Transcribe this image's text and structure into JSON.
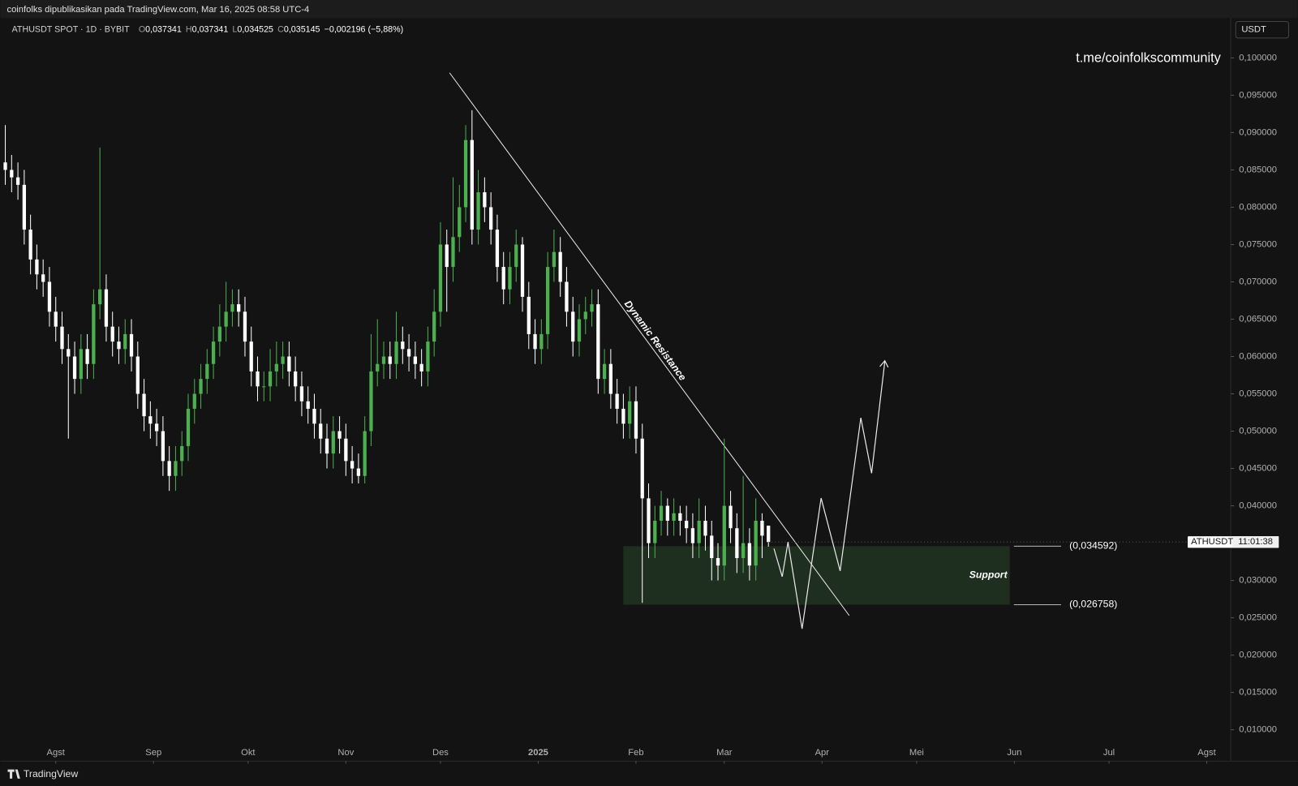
{
  "header": "coinfolks dipublikasikan pada TradingView.com, Mar 16, 2025 08:58 UTC-4",
  "footer": "TradingView",
  "currency": "USDT",
  "watermark": "t.me/coinfolkscommunity",
  "chart_data": {
    "type": "candlestick",
    "legend_title": "ATHUSDT SPOT · 1D · BYBIT",
    "ohlc": [
      {
        "key": "O",
        "label": "0,037341"
      },
      {
        "key": "H",
        "label": "0,037341"
      },
      {
        "key": "L",
        "label": "0,034525"
      },
      {
        "key": "C",
        "label": "0,035145"
      }
    ],
    "change": "−0,002196 (−5,88%)",
    "up_color": "#4caf50",
    "down_color": "#ffffff",
    "open": [
      0.086,
      0.085,
      0.084,
      0.083,
      0.077,
      0.073,
      0.071,
      0.07,
      0.066,
      0.064,
      0.061,
      0.06,
      0.057,
      0.061,
      0.059,
      0.067,
      0.069,
      0.064,
      0.062,
      0.061,
      0.063,
      0.06,
      0.055,
      0.052,
      0.051,
      0.05,
      0.046,
      0.044,
      0.046,
      0.048,
      0.053,
      0.055,
      0.057,
      0.059,
      0.062,
      0.064,
      0.066,
      0.067,
      0.066,
      0.062,
      0.058,
      0.056,
      0.056,
      0.058,
      0.059,
      0.06,
      0.058,
      0.056,
      0.054,
      0.053,
      0.051,
      0.049,
      0.047,
      0.05,
      0.049,
      0.046,
      0.045,
      0.044,
      0.05,
      0.058,
      0.059,
      0.06,
      0.059,
      0.062,
      0.061,
      0.06,
      0.059,
      0.058,
      0.062,
      0.066,
      0.075,
      0.072,
      0.076,
      0.08,
      0.089,
      0.077,
      0.082,
      0.08,
      0.077,
      0.072,
      0.069,
      0.072,
      0.075,
      0.068,
      0.063,
      0.061,
      0.063,
      0.072,
      0.074,
      0.07,
      0.066,
      0.062,
      0.065,
      0.066,
      0.067,
      0.057,
      0.059,
      0.055,
      0.053,
      0.051,
      0.054,
      0.049,
      0.041,
      0.035,
      0.038,
      0.04,
      0.038,
      0.039,
      0.038,
      0.037,
      0.035,
      0.038,
      0.036,
      0.033,
      0.032,
      0.04,
      0.037,
      0.033,
      0.035,
      0.032,
      0.038,
      0.037341
    ],
    "high": [
      0.091,
      0.087,
      0.086,
      0.085,
      0.079,
      0.075,
      0.073,
      0.072,
      0.068,
      0.066,
      0.063,
      0.062,
      0.063,
      0.063,
      0.069,
      0.088,
      0.071,
      0.066,
      0.064,
      0.065,
      0.065,
      0.062,
      0.057,
      0.054,
      0.053,
      0.052,
      0.048,
      0.048,
      0.05,
      0.055,
      0.057,
      0.059,
      0.061,
      0.064,
      0.067,
      0.07,
      0.069,
      0.069,
      0.068,
      0.064,
      0.06,
      0.058,
      0.061,
      0.062,
      0.062,
      0.062,
      0.06,
      0.058,
      0.056,
      0.055,
      0.053,
      0.051,
      0.052,
      0.052,
      0.051,
      0.048,
      0.047,
      0.052,
      0.063,
      0.065,
      0.062,
      0.062,
      0.066,
      0.064,
      0.063,
      0.062,
      0.061,
      0.064,
      0.069,
      0.078,
      0.077,
      0.084,
      0.083,
      0.091,
      0.093,
      0.085,
      0.084,
      0.082,
      0.079,
      0.074,
      0.074,
      0.077,
      0.076,
      0.07,
      0.065,
      0.065,
      0.074,
      0.077,
      0.076,
      0.072,
      0.068,
      0.067,
      0.068,
      0.069,
      0.069,
      0.061,
      0.061,
      0.057,
      0.055,
      0.056,
      0.056,
      0.051,
      0.043,
      0.04,
      0.042,
      0.041,
      0.041,
      0.04,
      0.04,
      0.039,
      0.041,
      0.04,
      0.038,
      0.035,
      0.049,
      0.042,
      0.039,
      0.044,
      0.037,
      0.041,
      0.039,
      0.037341
    ],
    "low": [
      0.083,
      0.082,
      0.081,
      0.075,
      0.071,
      0.069,
      0.068,
      0.064,
      0.062,
      0.059,
      0.049,
      0.055,
      0.055,
      0.057,
      0.057,
      0.065,
      0.062,
      0.06,
      0.059,
      0.059,
      0.058,
      0.053,
      0.05,
      0.049,
      0.048,
      0.044,
      0.042,
      0.042,
      0.044,
      0.046,
      0.051,
      0.053,
      0.055,
      0.057,
      0.06,
      0.062,
      0.064,
      0.064,
      0.06,
      0.056,
      0.054,
      0.054,
      0.054,
      0.056,
      0.057,
      0.056,
      0.054,
      0.052,
      0.051,
      0.049,
      0.047,
      0.045,
      0.045,
      0.047,
      0.044,
      0.043,
      0.043,
      0.043,
      0.048,
      0.056,
      0.057,
      0.057,
      0.057,
      0.059,
      0.058,
      0.057,
      0.056,
      0.056,
      0.06,
      0.064,
      0.066,
      0.07,
      0.074,
      0.078,
      0.075,
      0.075,
      0.078,
      0.075,
      0.07,
      0.067,
      0.067,
      0.07,
      0.066,
      0.061,
      0.059,
      0.059,
      0.061,
      0.07,
      0.068,
      0.064,
      0.06,
      0.06,
      0.063,
      0.064,
      0.055,
      0.055,
      0.053,
      0.051,
      0.049,
      0.049,
      0.047,
      0.027,
      0.033,
      0.033,
      0.036,
      0.036,
      0.036,
      0.036,
      0.035,
      0.033,
      0.033,
      0.034,
      0.03,
      0.03,
      0.03,
      0.035,
      0.031,
      0.031,
      0.03,
      0.03,
      0.033,
      0.034525
    ],
    "close": [
      0.085,
      0.084,
      0.083,
      0.077,
      0.073,
      0.071,
      0.07,
      0.066,
      0.064,
      0.061,
      0.06,
      0.057,
      0.061,
      0.059,
      0.067,
      0.069,
      0.064,
      0.062,
      0.061,
      0.063,
      0.06,
      0.055,
      0.052,
      0.051,
      0.05,
      0.046,
      0.044,
      0.046,
      0.048,
      0.053,
      0.055,
      0.057,
      0.059,
      0.062,
      0.064,
      0.066,
      0.067,
      0.066,
      0.062,
      0.058,
      0.056,
      0.056,
      0.058,
      0.059,
      0.06,
      0.058,
      0.056,
      0.054,
      0.053,
      0.051,
      0.049,
      0.047,
      0.05,
      0.049,
      0.046,
      0.045,
      0.044,
      0.05,
      0.058,
      0.059,
      0.06,
      0.059,
      0.062,
      0.061,
      0.06,
      0.059,
      0.058,
      0.062,
      0.066,
      0.075,
      0.072,
      0.076,
      0.08,
      0.089,
      0.077,
      0.082,
      0.08,
      0.077,
      0.072,
      0.069,
      0.072,
      0.075,
      0.068,
      0.063,
      0.061,
      0.063,
      0.072,
      0.074,
      0.07,
      0.066,
      0.062,
      0.065,
      0.066,
      0.067,
      0.057,
      0.059,
      0.055,
      0.053,
      0.051,
      0.054,
      0.049,
      0.041,
      0.035,
      0.038,
      0.04,
      0.038,
      0.039,
      0.038,
      0.037,
      0.035,
      0.038,
      0.036,
      0.033,
      0.032,
      0.04,
      0.037,
      0.033,
      0.035,
      0.032,
      0.038,
      0.036,
      0.035145
    ],
    "xlim": [
      -0.8,
      194.3
    ],
    "xticks": [
      {
        "value": 8,
        "label": "Agst"
      },
      {
        "value": 23.5,
        "label": "Sep"
      },
      {
        "value": 38.5,
        "label": "Okt"
      },
      {
        "value": 54,
        "label": "Nov"
      },
      {
        "value": 69,
        "label": "Des"
      },
      {
        "value": 84.5,
        "label": "2025"
      },
      {
        "value": 100,
        "label": "Feb"
      },
      {
        "value": 114,
        "label": "Mar"
      },
      {
        "value": 129.5,
        "label": "Apr"
      },
      {
        "value": 144.5,
        "label": "Mei"
      },
      {
        "value": 160,
        "label": "Jun"
      },
      {
        "value": 175,
        "label": "Jul"
      },
      {
        "value": 190.5,
        "label": "Agst"
      }
    ],
    "ylim": [
      0.00579,
      0.10532
    ],
    "yticks": [
      {
        "value": 0.1,
        "label": "0,100000"
      },
      {
        "value": 0.095,
        "label": "0,095000"
      },
      {
        "value": 0.09,
        "label": "0,090000"
      },
      {
        "value": 0.085,
        "label": "0,085000"
      },
      {
        "value": 0.08,
        "label": "0,080000"
      },
      {
        "value": 0.075,
        "label": "0,075000"
      },
      {
        "value": 0.07,
        "label": "0,070000"
      },
      {
        "value": 0.065,
        "label": "0,065000"
      },
      {
        "value": 0.06,
        "label": "0,060000"
      },
      {
        "value": 0.055,
        "label": "0,055000"
      },
      {
        "value": 0.05,
        "label": "0,050000"
      },
      {
        "value": 0.045,
        "label": "0,045000"
      },
      {
        "value": 0.04,
        "label": "0,040000"
      },
      {
        "value": 0.035,
        "label": "0,035000"
      },
      {
        "value": 0.03,
        "label": "0,030000"
      },
      {
        "value": 0.025,
        "label": "0,025000"
      },
      {
        "value": 0.02,
        "label": "0,020000"
      },
      {
        "value": 0.015,
        "label": "0,015000"
      },
      {
        "value": 0.01,
        "label": "0,010000"
      }
    ],
    "support": {
      "label": "Support",
      "top": 0.034592,
      "top_label": "(0,034592)",
      "bottom": 0.026758,
      "bottom_label": "(0,026758)",
      "color": "#1f2f1f"
    },
    "resistance_label": "Dynamic Resistance",
    "price_tag": {
      "symbol": "ATHUSDT",
      "countdown": "11:01:38"
    }
  }
}
